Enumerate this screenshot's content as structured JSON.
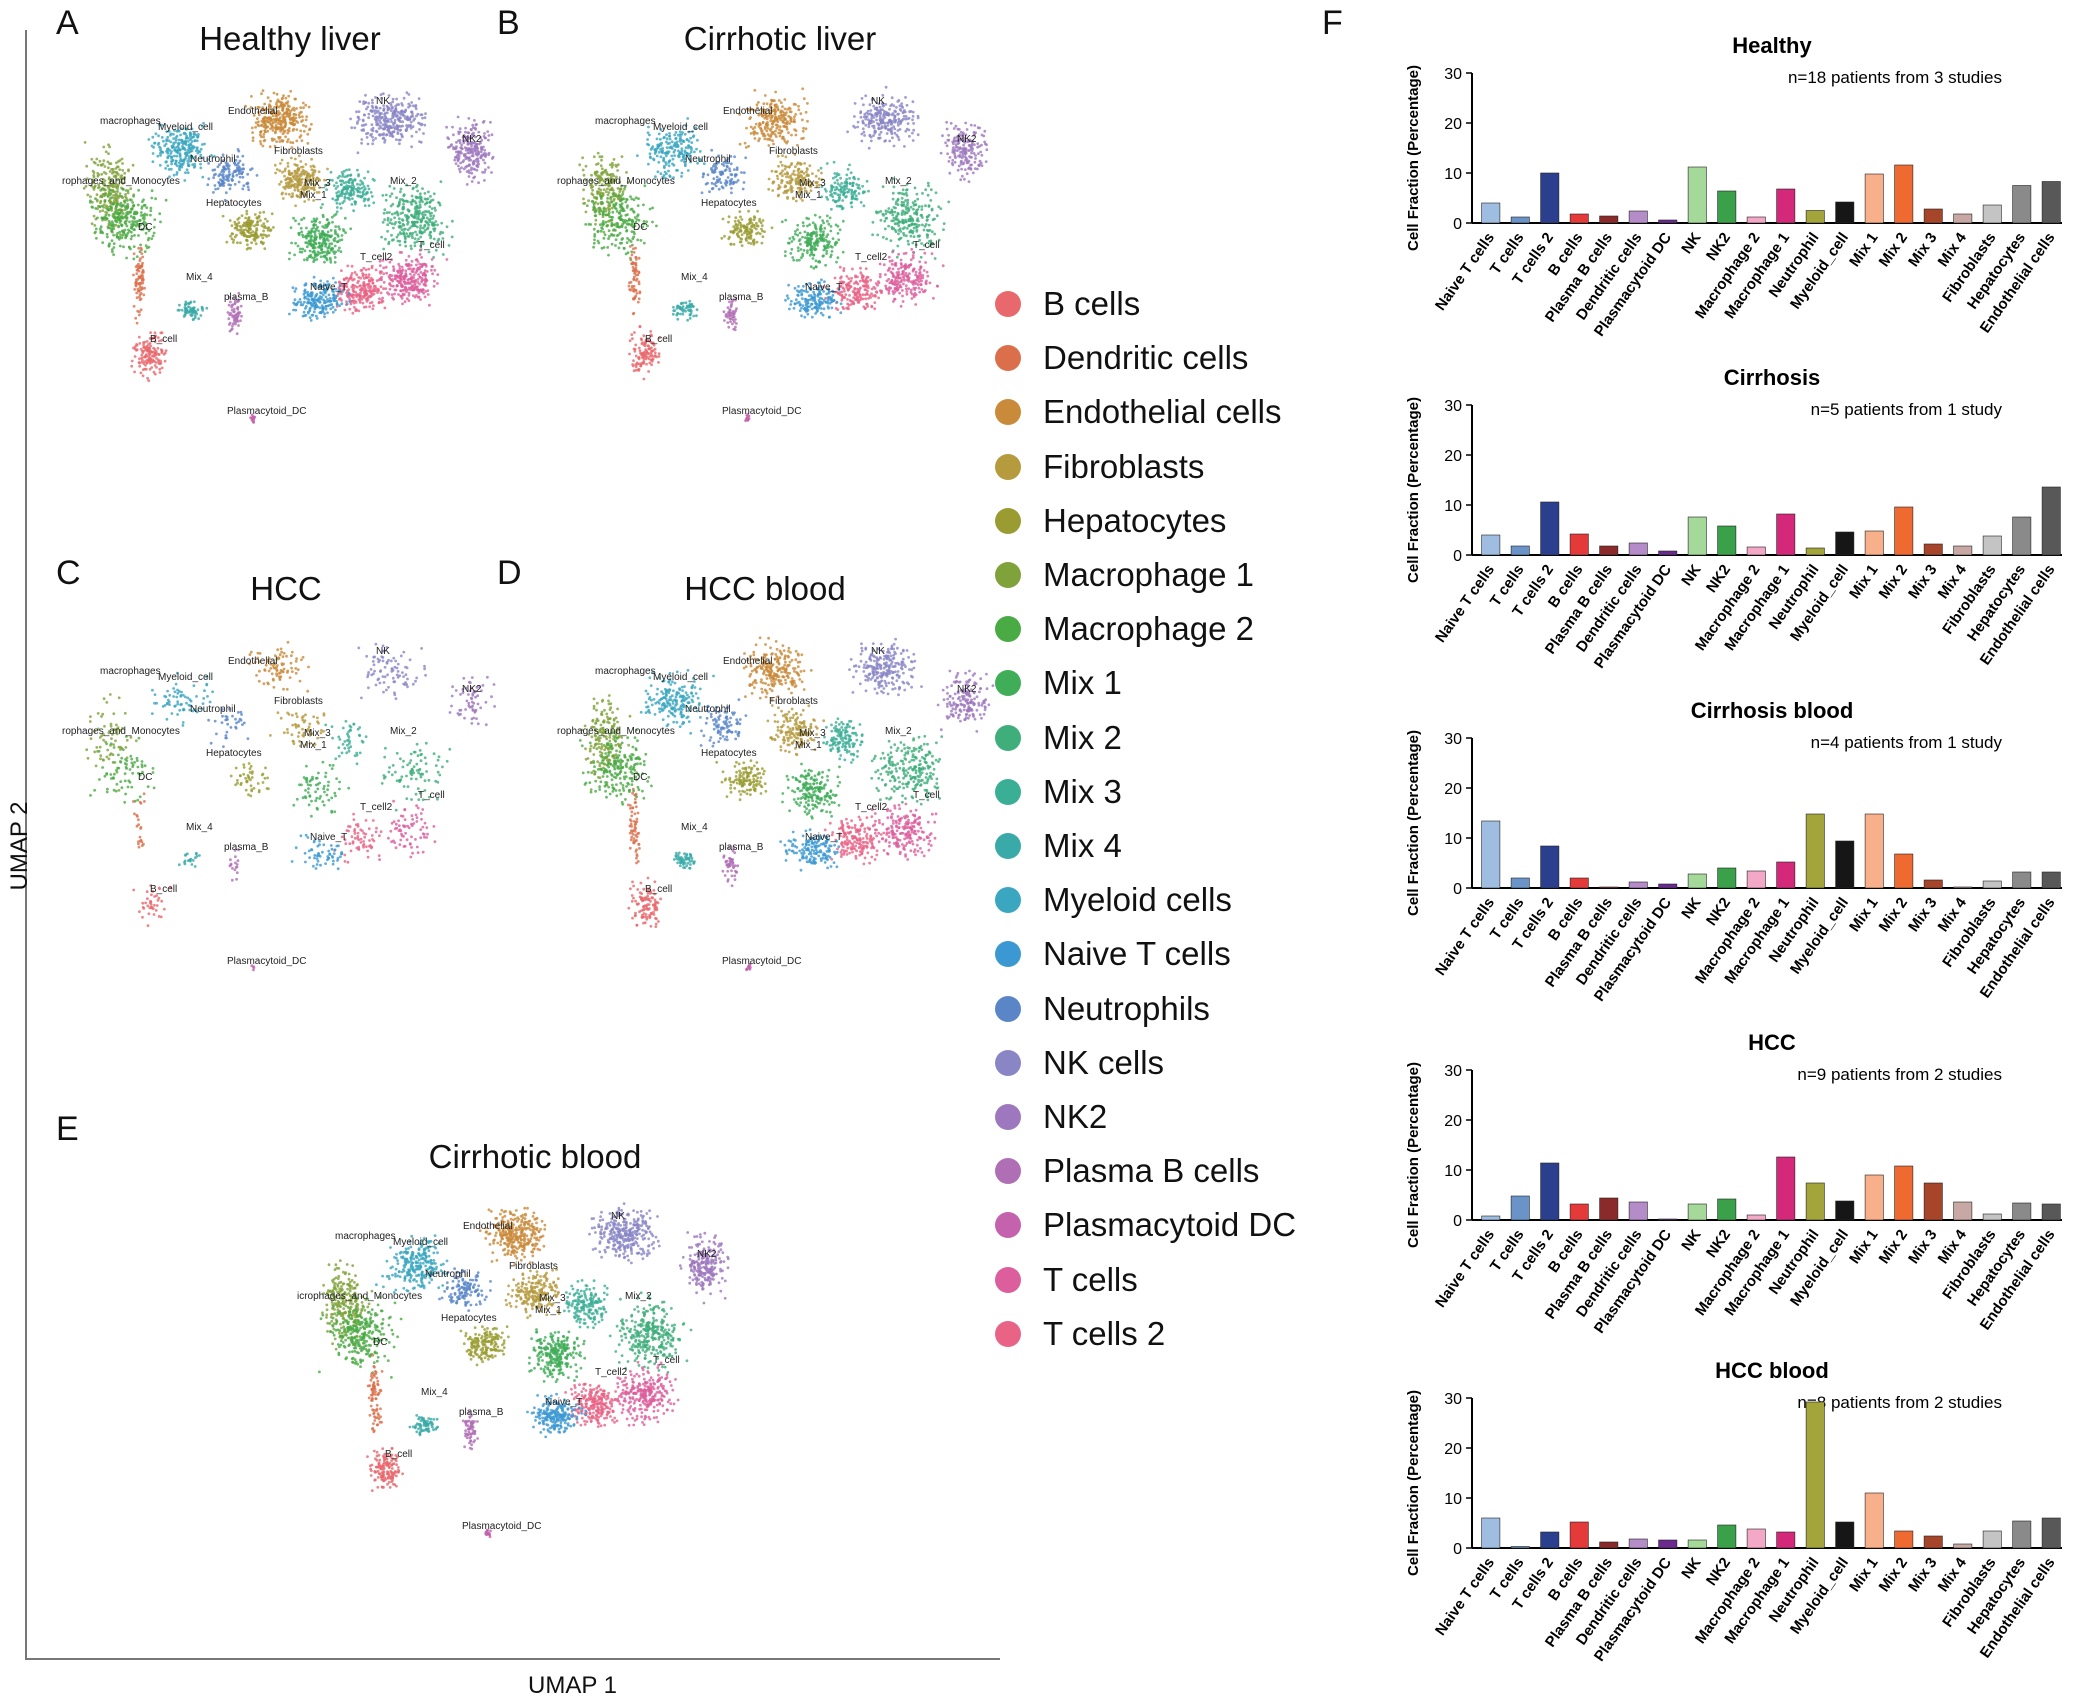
{
  "panel_letters": {
    "a": "A",
    "b": "B",
    "c": "C",
    "d": "D",
    "e": "E",
    "f": "F"
  },
  "umap": {
    "axis_x": "UMAP 1",
    "axis_y": "UMAP 2",
    "panels": [
      {
        "key": "a",
        "title": "Healthy liver",
        "density": 1.0,
        "labels": [
          "macrophages",
          "Myeloid_cell",
          "Endothelial",
          "NK",
          "NK2",
          "Neutrophil",
          "Fibroblasts",
          "rophages_and_Monocytes",
          "Mix_3",
          "Mix_2",
          "Hepatocytes",
          "Mix_1",
          "DC",
          "T_cell2",
          "T_cell",
          "Mix_4",
          "Naive_T",
          "plasma_B",
          "B_cell",
          "Plasmacytoid_DC"
        ]
      },
      {
        "key": "b",
        "title": "Cirrhotic liver",
        "density": 0.8,
        "labels": [
          "macrophages",
          "Myeloid_cell",
          "Endothelial",
          "NK",
          "NK2",
          "Neutrophil",
          "Fibroblasts",
          "rophages_and_Monocytes",
          "Mix_3",
          "Mix_2",
          "Hepatocytes",
          "Mix_1",
          "DC",
          "T_cell2",
          "T_cell",
          "Mix_4",
          "Naive_T",
          "plasma_B",
          "B_cell",
          "Plasmacytoid_DC"
        ]
      },
      {
        "key": "c",
        "title": "HCC",
        "density": 0.28,
        "labels": [
          "macrophages",
          "Myeloid_cell",
          "Endothelial",
          "NK",
          "NK2",
          "Neutrophil",
          "Fibroblasts",
          "rophages_and_Monocytes",
          "Mix_3",
          "Mix_2",
          "Hepatocytes",
          "Mix_1",
          "DC",
          "T_cell2",
          "T_cell",
          "Mix_4",
          "Naive_T",
          "plasma_B",
          "B_cell",
          "Plasmacytoid_DC"
        ]
      },
      {
        "key": "d",
        "title": "HCC blood",
        "density": 0.75,
        "labels": [
          "macrophages",
          "Myeloid_cell",
          "Endothelial",
          "NK",
          "NK2",
          "Neutrophil",
          "Fibroblasts",
          "rophages_and_Monocytes",
          "Mix_3",
          "Mix_2",
          "Hepatocytes",
          "Mix_1",
          "DC",
          "T_cell2",
          "T_cell",
          "Mix_4",
          "Naive_T",
          "plasma_B",
          "B_cell",
          "Plasmacytoid_DC"
        ]
      },
      {
        "key": "e",
        "title": "Cirrhotic blood",
        "density": 1.0,
        "labels": [
          "macrophages",
          "Myeloid_cell",
          "Endothelial",
          "NK",
          "NK2",
          "Neutrophil",
          "Fibroblasts",
          "icrophages_and_Monocytes",
          "Mix_3",
          "Mix_2",
          "Hepatocytes",
          "Mix_1",
          "DC",
          "T_cell2",
          "T_cell",
          "Mix_4",
          "Naive_T",
          "plasma_B",
          "B_cell",
          "Plasmacytoid_DC"
        ]
      }
    ]
  },
  "legend": {
    "items": [
      {
        "label": "B cells",
        "color": "#e8686d"
      },
      {
        "label": "Dendritic cells",
        "color": "#dc6f4b"
      },
      {
        "label": "Endothelial cells",
        "color": "#c98a3a"
      },
      {
        "label": "Fibroblasts",
        "color": "#b59a3e"
      },
      {
        "label": "Hepatocytes",
        "color": "#9a9c32"
      },
      {
        "label": "Macrophage 1",
        "color": "#7fa23a"
      },
      {
        "label": "Macrophage 2",
        "color": "#4aaa44"
      },
      {
        "label": "Mix 1",
        "color": "#40ad58"
      },
      {
        "label": "Mix 2",
        "color": "#3fae7a"
      },
      {
        "label": "Mix 3",
        "color": "#3bae96"
      },
      {
        "label": "Mix 4",
        "color": "#3aaaa8"
      },
      {
        "label": "Myeloid cells",
        "color": "#3aa6c0"
      },
      {
        "label": "Naive T cells",
        "color": "#3c98d2"
      },
      {
        "label": "Neutrophils",
        "color": "#5a86c8"
      },
      {
        "label": "NK cells",
        "color": "#8a86c6"
      },
      {
        "label": "NK2",
        "color": "#9d78be"
      },
      {
        "label": "Plasma B cells",
        "color": "#b06eb4"
      },
      {
        "label": "Plasmacytoid DC",
        "color": "#c462ae"
      },
      {
        "label": "T cells",
        "color": "#dc5e9c"
      },
      {
        "label": "T cells 2",
        "color": "#e86386"
      }
    ]
  },
  "chart_data": [
    {
      "type": "bar",
      "title": "Healthy",
      "subtitle": "n=18 patients from 3 studies",
      "ylabel": "Cell Fraction (Percentage)",
      "ylim": [
        0,
        30
      ],
      "yticks": [
        0,
        10,
        20,
        30
      ],
      "categories": [
        "Naive T cells",
        "T cells",
        "T cells 2",
        "B cells",
        "Plasma B cells",
        "Dendritic cells",
        "Plasmacytoid DC",
        "NK",
        "NK2",
        "Macrophage 2",
        "Macrophage 1",
        "Neutrophil",
        "Myeloid_cell",
        "Mix 1",
        "Mix 2",
        "Mix 3",
        "Mix 4",
        "Fibroblasts",
        "Hepatocytes",
        "Endothelial cells"
      ],
      "values": [
        4,
        1.2,
        10,
        1.8,
        1.4,
        2.4,
        0.6,
        11.2,
        6.4,
        1.2,
        6.8,
        2.5,
        4.2,
        9.8,
        11.6,
        2.8,
        1.8,
        3.6,
        7.5,
        8.3
      ]
    },
    {
      "type": "bar",
      "title": "Cirrhosis",
      "subtitle": "n=5 patients from 1 study",
      "ylabel": "Cell Fraction (Percentage)",
      "ylim": [
        0,
        30
      ],
      "yticks": [
        0,
        10,
        20,
        30
      ],
      "categories": [
        "Naive T cells",
        "T cells",
        "T cells 2",
        "B cells",
        "Plasma B cells",
        "Dendritic cells",
        "Plasmacytoid DC",
        "NK",
        "NK2",
        "Macrophage 2",
        "Macrophage 1",
        "Neutrophil",
        "Myeloid_cell",
        "Mix 1",
        "Mix 2",
        "Mix 3",
        "Mix 4",
        "Fibroblasts",
        "Hepatocytes",
        "Endothelial cells"
      ],
      "values": [
        4,
        1.8,
        10.6,
        4.2,
        1.8,
        2.4,
        0.8,
        7.6,
        5.8,
        1.6,
        8.2,
        1.4,
        4.6,
        4.8,
        9.6,
        2.2,
        1.8,
        3.8,
        7.6,
        13.6
      ]
    },
    {
      "type": "bar",
      "title": "Cirrhosis blood",
      "subtitle": "n=4 patients from 1 study",
      "ylabel": "Cell Fraction (Percentage)",
      "ylim": [
        0,
        30
      ],
      "yticks": [
        0,
        10,
        20,
        30
      ],
      "categories": [
        "Naive T cells",
        "T cells",
        "T cells 2",
        "B cells",
        "Plasma B cells",
        "Dendritic cells",
        "Plasmacytoid DC",
        "NK",
        "NK2",
        "Macrophage 2",
        "Macrophage 1",
        "Neutrophil",
        "Myeloid_cell",
        "Mix 1",
        "Mix 2",
        "Mix 3",
        "Mix 4",
        "Fibroblasts",
        "Hepatocytes",
        "Endothelial cells"
      ],
      "values": [
        13.4,
        2,
        8.4,
        2,
        0.2,
        1.2,
        0.8,
        2.8,
        4,
        3.4,
        5.2,
        14.8,
        9.4,
        14.8,
        6.8,
        1.6,
        0.2,
        1.4,
        3.2,
        3.2
      ]
    },
    {
      "type": "bar",
      "title": "HCC",
      "subtitle": "n=9 patients from 2 studies",
      "ylabel": "Cell Fraction (Percentage)",
      "ylim": [
        0,
        30
      ],
      "yticks": [
        0,
        10,
        20,
        30
      ],
      "categories": [
        "Naive T cells",
        "T cells",
        "T cells 2",
        "B cells",
        "Plasma B cells",
        "Dendritic cells",
        "Plasmacytoid DC",
        "NK",
        "NK2",
        "Macrophage 2",
        "Macrophage 1",
        "Neutrophil",
        "Myeloid_cell",
        "Mix 1",
        "Mix 2",
        "Mix 3",
        "Mix 4",
        "Fibroblasts",
        "Hepatocytes",
        "Endothelial cells"
      ],
      "values": [
        0.8,
        4.8,
        11.4,
        3.2,
        4.4,
        3.6,
        0.2,
        3.2,
        4.2,
        1,
        12.6,
        7.4,
        3.8,
        9,
        10.8,
        7.4,
        3.6,
        1.2,
        3.4,
        3.2
      ]
    },
    {
      "type": "bar",
      "title": "HCC  blood",
      "subtitle": "n=8 patients from 2 studies",
      "ylabel": "Cell Fraction (Percentage)",
      "ylim": [
        0,
        30
      ],
      "yticks": [
        0,
        10,
        20,
        30
      ],
      "categories": [
        "Naive T cells",
        "T cells",
        "T cells 2",
        "B cells",
        "Plasma B cells",
        "Dendritic cells",
        "Plasmacytoid DC",
        "NK",
        "NK2",
        "Macrophage 2",
        "Macrophage 1",
        "Neutrophil",
        "Myeloid_cell",
        "Mix 1",
        "Mix 2",
        "Mix 3",
        "Mix 4",
        "Fibroblasts",
        "Hepatocytes",
        "Endothelial cells"
      ],
      "values": [
        6,
        0.3,
        3.2,
        5.2,
        1.2,
        1.8,
        1.6,
        1.6,
        4.6,
        3.8,
        3.2,
        29.2,
        5.2,
        11,
        3.4,
        2.4,
        0.8,
        3.4,
        5.4,
        6
      ]
    }
  ],
  "bar_colors": [
    "#9fbde0",
    "#6a94c8",
    "#2c3f8e",
    "#e53a3a",
    "#8b2a2a",
    "#b48dc8",
    "#6a2a8e",
    "#a4d99a",
    "#3aa04a",
    "#f4a8c8",
    "#d4287a",
    "#a3a43a",
    "#161616",
    "#f8b08a",
    "#ee6a30",
    "#a6452a",
    "#c8a8a4",
    "#c4c4c4",
    "#8a8a8a",
    "#585858"
  ]
}
